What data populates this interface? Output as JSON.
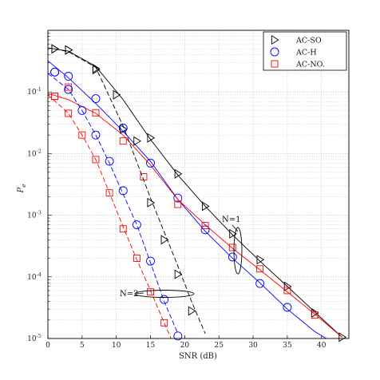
{
  "chart_data": {
    "type": "line",
    "xlabel": "SNR (dB)",
    "ylabel": "P_e",
    "xlim": [
      0,
      44
    ],
    "ylim": [
      1e-05,
      1
    ],
    "yscale": "log",
    "x_ticks": [
      0,
      5,
      10,
      15,
      20,
      25,
      30,
      35,
      40
    ],
    "y_ticks": [
      {
        "value": 0.1,
        "label": "10",
        "exp": "-1"
      },
      {
        "value": 0.01,
        "label": "10",
        "exp": "-2"
      },
      {
        "value": 0.001,
        "label": "10",
        "exp": "-3"
      },
      {
        "value": 0.0001,
        "label": "10",
        "exp": "-4"
      },
      {
        "value": 1e-05,
        "label": "10",
        "exp": "-5"
      }
    ],
    "grid": true,
    "legend_placement": "top-right",
    "legend": [
      {
        "name": "AC-SO",
        "color": "#000000",
        "marker": "triangle-right"
      },
      {
        "name": "AC-H",
        "color": "#0000ff",
        "marker": "circle"
      },
      {
        "name": "AC-NO.",
        "color": "#ff0000",
        "marker": "square"
      }
    ],
    "series": [
      {
        "group": "N=1",
        "scheme": "AC-SO",
        "color": "#000000",
        "dash": false,
        "marker": "triangle-right",
        "curve": [
          [
            0,
            0.52
          ],
          [
            3,
            0.46
          ],
          [
            7,
            0.26
          ],
          [
            11,
            0.075
          ],
          [
            15,
            0.017
          ],
          [
            19,
            0.0045
          ],
          [
            23,
            0.0014
          ],
          [
            27,
            0.00048
          ],
          [
            31,
            0.00018
          ],
          [
            35,
            7e-05
          ],
          [
            39,
            2.7e-05
          ],
          [
            43,
            1.05e-05
          ]
        ],
        "markers": [
          [
            1,
            0.5
          ],
          [
            3,
            0.48
          ],
          [
            7,
            0.23
          ],
          [
            11,
            0.025
          ],
          [
            15,
            0.018
          ],
          [
            19,
            0.0047
          ],
          [
            23,
            0.0014
          ],
          [
            27,
            0.0005
          ],
          [
            31,
            0.00019
          ],
          [
            35,
            7e-05
          ],
          [
            39,
            2.6e-05
          ],
          [
            43,
            1.05e-05
          ]
        ]
      },
      {
        "group": "N=1",
        "scheme": "AC-H",
        "color": "#0000ff",
        "dash": false,
        "marker": "circle",
        "curve": [
          [
            0,
            0.32
          ],
          [
            3,
            0.17
          ],
          [
            7,
            0.065
          ],
          [
            11,
            0.023
          ],
          [
            15,
            0.0075
          ],
          [
            19,
            0.0018
          ],
          [
            23,
            0.00055
          ],
          [
            27,
            0.0002
          ],
          [
            31,
            8e-05
          ],
          [
            35,
            3e-05
          ],
          [
            39,
            1.3e-05
          ],
          [
            43,
            7e-06
          ]
        ],
        "markers": [
          [
            1,
            0.21
          ],
          [
            3,
            0.18
          ],
          [
            7,
            0.078
          ],
          [
            11,
            0.026
          ],
          [
            15,
            0.007
          ],
          [
            19,
            0.0019
          ],
          [
            23,
            0.00058
          ],
          [
            27,
            0.00021
          ],
          [
            31,
            7.8e-05
          ],
          [
            35,
            3.2e-05
          ]
        ]
      },
      {
        "group": "N=1",
        "scheme": "AC-NO.",
        "color": "#ff0000",
        "dash": false,
        "marker": "square",
        "curve": [
          [
            0,
            0.095
          ],
          [
            3,
            0.075
          ],
          [
            7,
            0.045
          ],
          [
            11,
            0.02
          ],
          [
            15,
            0.0065
          ],
          [
            19,
            0.0018
          ],
          [
            23,
            0.0007
          ],
          [
            27,
            0.00029
          ],
          [
            31,
            0.00013
          ],
          [
            35,
            5.7e-05
          ],
          [
            39,
            2.5e-05
          ],
          [
            43,
            1.05e-05
          ]
        ],
        "markers": [
          [
            1,
            0.085
          ],
          [
            3,
            0.12
          ],
          [
            7,
            0.046
          ],
          [
            11,
            0.016
          ],
          [
            14,
            0.0042
          ],
          [
            19,
            0.0015
          ],
          [
            23,
            0.00068
          ],
          [
            27,
            0.0003
          ],
          [
            31,
            0.000135
          ],
          [
            35,
            6e-05
          ],
          [
            39,
            2.4e-05
          ]
        ]
      },
      {
        "group": "N=2",
        "scheme": "AC-SO",
        "color": "#000000",
        "dash": true,
        "marker": "triangle-right",
        "curve": [
          [
            1,
            0.5
          ],
          [
            3,
            0.45
          ],
          [
            7,
            0.25
          ],
          [
            11,
            0.028
          ],
          [
            15,
            0.0019
          ],
          [
            19,
            0.00015
          ],
          [
            21,
            4e-05
          ],
          [
            23,
            1.2e-05
          ]
        ],
        "markers": [
          [
            1,
            0.5
          ],
          [
            3,
            0.48
          ],
          [
            7,
            0.24
          ],
          [
            10,
            0.09
          ],
          [
            13,
            0.016
          ],
          [
            15,
            0.0016
          ],
          [
            17,
            0.0004
          ],
          [
            19,
            0.00011
          ],
          [
            21,
            2.8e-05
          ]
        ]
      },
      {
        "group": "N=2",
        "scheme": "AC-H",
        "color": "#0000ff",
        "dash": true,
        "marker": "circle",
        "curve": [
          [
            0,
            0.2
          ],
          [
            3,
            0.11
          ],
          [
            5,
            0.05
          ],
          [
            7,
            0.02
          ],
          [
            9,
            0.007
          ],
          [
            11,
            0.0022
          ],
          [
            13,
            0.0007
          ],
          [
            15,
            0.00017
          ],
          [
            17,
            4e-05
          ],
          [
            19,
            1.2e-05
          ]
        ],
        "markers": [
          [
            1,
            0.21
          ],
          [
            3,
            0.11
          ],
          [
            5,
            0.05
          ],
          [
            7,
            0.02
          ],
          [
            9,
            0.0075
          ],
          [
            11,
            0.0025
          ],
          [
            13,
            0.0007
          ],
          [
            15,
            0.00018
          ],
          [
            17,
            4.3e-05
          ],
          [
            19,
            1.1e-05
          ]
        ]
      },
      {
        "group": "N=2",
        "scheme": "AC-NO.",
        "color": "#ff0000",
        "dash": true,
        "marker": "square",
        "curve": [
          [
            0,
            0.09
          ],
          [
            3,
            0.045
          ],
          [
            5,
            0.02
          ],
          [
            7,
            0.008
          ],
          [
            9,
            0.0023
          ],
          [
            11,
            0.00065
          ],
          [
            13,
            0.00019
          ],
          [
            15,
            6e-05
          ],
          [
            17,
            1.8e-05
          ],
          [
            18,
            1e-05
          ]
        ],
        "markers": [
          [
            1,
            0.085
          ],
          [
            3,
            0.045
          ],
          [
            5,
            0.02
          ],
          [
            7,
            0.008
          ],
          [
            9,
            0.0023
          ],
          [
            11,
            0.0006
          ],
          [
            13,
            0.0002
          ],
          [
            15,
            5.7e-05
          ],
          [
            17,
            1.8e-05
          ]
        ]
      }
    ],
    "annotations": [
      {
        "text": "N=1",
        "x": 28,
        "y": 0.0011
      },
      {
        "text": "N=2",
        "x": 13.2,
        "y": 4e-05
      }
    ]
  }
}
